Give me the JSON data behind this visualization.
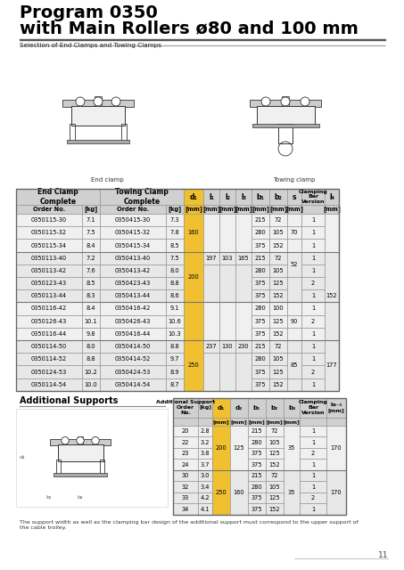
{
  "title_line1": "Program 0350",
  "title_line2": "with Main Rollers ø80 and 100 mm",
  "subtitle": "Selection of End Clamps and Towing Clamps",
  "bg_color": "#ffffff",
  "yellow_col_bg": "#f0c030",
  "header_bg": "#d0d0d0",
  "main_rows": [
    [
      "0350115-30",
      "7.1",
      "0350415-30",
      "7.3",
      "160",
      "",
      "",
      "",
      "215",
      "72",
      "",
      "1",
      ""
    ],
    [
      "0350115-32",
      "7.5",
      "0350415-32",
      "7.8",
      "160",
      "",
      "",
      "",
      "280",
      "105",
      "70",
      "1",
      ""
    ],
    [
      "0350115-34",
      "8.4",
      "0350415-34",
      "8.5",
      "160",
      "",
      "",
      "",
      "375",
      "152",
      "",
      "1",
      ""
    ],
    [
      "0350113-40",
      "7.2",
      "0350413-40",
      "7.5",
      "",
      "197",
      "103",
      "165",
      "215",
      "72",
      "",
      "1",
      "152"
    ],
    [
      "0350113-42",
      "7.6",
      "0350413-42",
      "8.0",
      "",
      "",
      "",
      "",
      "280",
      "105",
      "52",
      "1",
      ""
    ],
    [
      "0350123-43",
      "8.5",
      "0350423-43",
      "8.8",
      "",
      "",
      "",
      "",
      "375",
      "125",
      "52",
      "2",
      ""
    ],
    [
      "0350113-44",
      "8.3",
      "0350413-44",
      "8.6",
      "200",
      "",
      "",
      "",
      "375",
      "152",
      "",
      "1",
      ""
    ],
    [
      "0350116-42",
      "8.4",
      "0350416-42",
      "9.1",
      "",
      "",
      "",
      "",
      "280",
      "100",
      "",
      "1",
      ""
    ],
    [
      "0350126-43",
      "10.1",
      "0350426-43",
      "10.6",
      "",
      "",
      "",
      "",
      "375",
      "125",
      "90",
      "2",
      ""
    ],
    [
      "0350116-44",
      "9.8",
      "0350416-44",
      "10.3",
      "",
      "",
      "",
      "",
      "375",
      "152",
      "",
      "1",
      ""
    ],
    [
      "0350114-50",
      "8.0",
      "0350414-50",
      "8.8",
      "",
      "237",
      "130",
      "230",
      "215",
      "72",
      "",
      "1",
      "177"
    ],
    [
      "0350114-52",
      "8.8",
      "0350414-52",
      "9.7",
      "250",
      "",
      "",
      "",
      "280",
      "105",
      "85",
      "1",
      ""
    ],
    [
      "0350124-53",
      "10.2",
      "0350424-53",
      "8.9",
      "",
      "",
      "",
      "",
      "375",
      "125",
      "",
      "2",
      ""
    ],
    [
      "0350114-54",
      "10.0",
      "0350414-54",
      "8.7",
      "",
      "",
      "",
      "",
      "375",
      "152",
      "",
      "1",
      ""
    ]
  ],
  "add_rows": [
    [
      "20",
      "2.8",
      "",
      "",
      "215",
      "72",
      "",
      "1",
      ""
    ],
    [
      "22",
      "3.2",
      "200",
      "125",
      "280",
      "105",
      "35",
      "1",
      "170"
    ],
    [
      "23",
      "3.8",
      "",
      "",
      "375",
      "125",
      "",
      "2",
      ""
    ],
    [
      "24",
      "3.7",
      "",
      "",
      "375",
      "152",
      "",
      "1",
      ""
    ],
    [
      "30",
      "3.0",
      "",
      "",
      "215",
      "72",
      "",
      "1",
      ""
    ],
    [
      "32",
      "3.4",
      "250",
      "160",
      "280",
      "105",
      "35",
      "1",
      "170"
    ],
    [
      "33",
      "4.2",
      "",
      "",
      "375",
      "125",
      "",
      "2",
      ""
    ],
    [
      "34",
      "4.1",
      "",
      "",
      "375",
      "152",
      "",
      "1",
      ""
    ]
  ],
  "footnote": "The support width as well as the clamping bar design of the additional support must correspond to the upper support of\nthe cable trolley.",
  "page_number": "11"
}
